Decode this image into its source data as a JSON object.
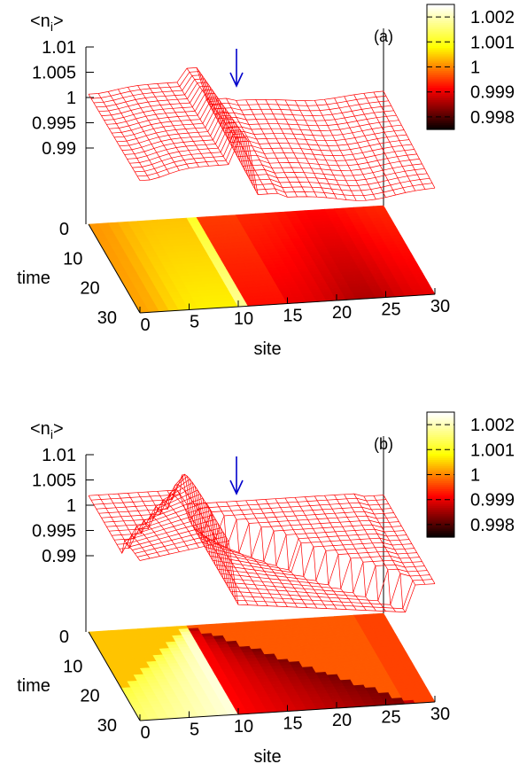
{
  "chart_data": [
    {
      "type": "heatmap",
      "panel_label": "(a)",
      "zlabel_main": "<n",
      "zlabel_sub": "i",
      "zlabel_end": ">",
      "xlabel": "site",
      "ylabel": "time",
      "z_ticks": [
        "1.01",
        "1.005",
        "1",
        "0.995",
        "0.99"
      ],
      "x_ticks": [
        "0",
        "5",
        "10",
        "15",
        "20",
        "25",
        "30"
      ],
      "y_ticks": [
        "0",
        "10",
        "20",
        "30"
      ],
      "colorbar_ticks": [
        "1.002",
        "1.001",
        "1",
        "0.999",
        "0.998"
      ],
      "zlim": [
        0.99,
        1.01
      ],
      "xlim": [
        0,
        30
      ],
      "ylim": [
        0,
        30
      ],
      "cblim": [
        0.9975,
        1.0025
      ],
      "arrow_site": 10,
      "surface_color": "#ff0000",
      "arrow_color": "#0000cc",
      "perturbation": "double-well",
      "mesh_style": "wireframe"
    },
    {
      "type": "heatmap",
      "panel_label": "(b)",
      "zlabel_main": "<n",
      "zlabel_sub": "i",
      "zlabel_end": ">",
      "xlabel": "site",
      "ylabel": "time",
      "z_ticks": [
        "1.01",
        "1.005",
        "1",
        "0.995",
        "0.99"
      ],
      "x_ticks": [
        "0",
        "5",
        "10",
        "15",
        "20",
        "25",
        "30"
      ],
      "y_ticks": [
        "0",
        "10",
        "20",
        "30"
      ],
      "colorbar_ticks": [
        "1.002",
        "1.001",
        "1",
        "0.999",
        "0.998"
      ],
      "zlim": [
        0.99,
        1.01
      ],
      "xlim": [
        0,
        30
      ],
      "ylim": [
        0,
        30
      ],
      "cblim": [
        0.9975,
        1.0025
      ],
      "arrow_site": 10,
      "surface_color": "#ff0000",
      "arrow_color": "#0000cc",
      "perturbation": "lightcone",
      "mesh_style": "wireframe"
    }
  ]
}
